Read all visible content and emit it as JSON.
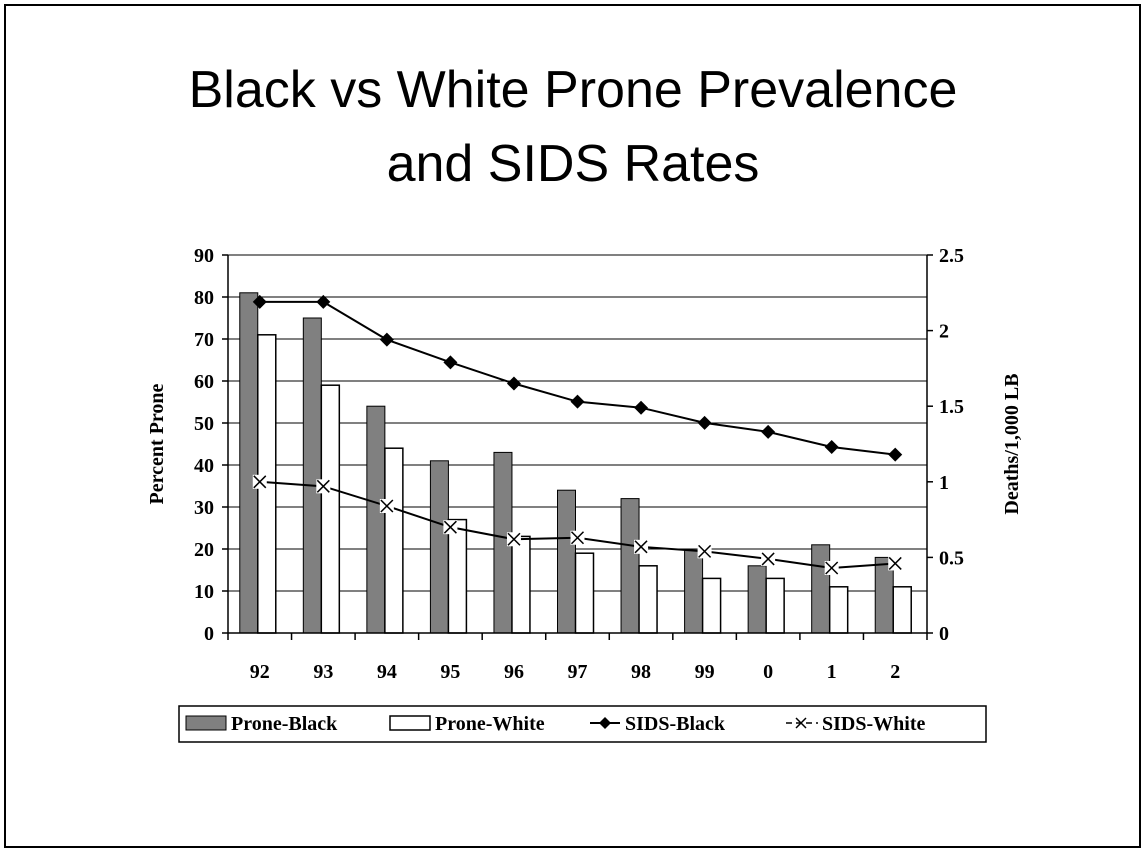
{
  "slide": {
    "title_line1": "Black vs White Prone Prevalence",
    "title_line2": "and SIDS Rates"
  },
  "chart_data": {
    "type": "bar",
    "title": "Black vs White Prone Prevalence and SIDS Rates",
    "categories": [
      "92",
      "93",
      "94",
      "95",
      "96",
      "97",
      "98",
      "99",
      "0",
      "1",
      "2"
    ],
    "ylabel": "Percent Prone",
    "y2label": "Deaths/1,000 LB",
    "ylim": [
      0,
      90
    ],
    "y_ticks": [
      0,
      10,
      20,
      30,
      40,
      50,
      60,
      70,
      80,
      90
    ],
    "y2lim": [
      0,
      2.5
    ],
    "y2_ticks": [
      "0",
      "0.5",
      "1",
      "1.5",
      "2",
      "2.5"
    ],
    "grid": true,
    "legend_position": "bottom",
    "series": [
      {
        "name": "Prone-Black",
        "type": "bar",
        "axis": "left",
        "color": "#808080",
        "values": [
          81,
          75,
          54,
          41,
          43,
          34,
          32,
          20,
          16,
          21,
          18
        ]
      },
      {
        "name": "Prone-White",
        "type": "bar",
        "axis": "left",
        "color": "#ffffff",
        "values": [
          71,
          59,
          44,
          27,
          23,
          19,
          16,
          13,
          13,
          11,
          11
        ]
      },
      {
        "name": "SIDS-Black",
        "type": "line",
        "axis": "right",
        "marker": "diamond",
        "values": [
          2.19,
          2.19,
          1.94,
          1.79,
          1.65,
          1.53,
          1.49,
          1.39,
          1.33,
          1.23,
          1.18
        ]
      },
      {
        "name": "SIDS-White",
        "type": "line",
        "axis": "right",
        "marker": "x",
        "values": [
          1.0,
          0.97,
          0.84,
          0.7,
          0.62,
          0.63,
          0.57,
          0.54,
          0.49,
          0.43,
          0.46
        ]
      }
    ]
  }
}
